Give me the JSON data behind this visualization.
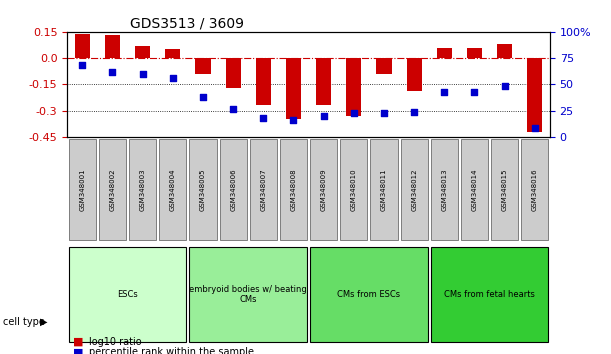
{
  "title": "GDS3513 / 3609",
  "samples": [
    "GSM348001",
    "GSM348002",
    "GSM348003",
    "GSM348004",
    "GSM348005",
    "GSM348006",
    "GSM348007",
    "GSM348008",
    "GSM348009",
    "GSM348010",
    "GSM348011",
    "GSM348012",
    "GSM348013",
    "GSM348014",
    "GSM348015",
    "GSM348016"
  ],
  "log10_ratio": [
    0.135,
    0.13,
    0.07,
    0.05,
    -0.09,
    -0.17,
    -0.27,
    -0.35,
    -0.27,
    -0.33,
    -0.09,
    -0.19,
    0.06,
    0.06,
    0.08,
    -0.42
  ],
  "percentile_rank": [
    68,
    62,
    60,
    56,
    38,
    27,
    18,
    16,
    20,
    23,
    23,
    24,
    43,
    43,
    48,
    8
  ],
  "ylim_left": [
    -0.45,
    0.15
  ],
  "ylim_right": [
    0,
    100
  ],
  "yticks_left": [
    -0.45,
    -0.3,
    -0.15,
    0.0,
    0.15
  ],
  "yticks_right": [
    0,
    25,
    50,
    75,
    100
  ],
  "bar_color": "#cc0000",
  "dot_color": "#0000cc",
  "zero_line_color": "#cc0000",
  "grid_line_color": "#000000",
  "cell_type_groups": [
    {
      "label": "ESCs",
      "start": 0,
      "end": 3,
      "color": "#ccffcc"
    },
    {
      "label": "embryoid bodies w/ beating\nCMs",
      "start": 4,
      "end": 7,
      "color": "#99ee99"
    },
    {
      "label": "CMs from ESCs",
      "start": 8,
      "end": 11,
      "color": "#66dd66"
    },
    {
      "label": "CMs from fetal hearts",
      "start": 12,
      "end": 15,
      "color": "#33cc33"
    }
  ],
  "legend_items": [
    {
      "label": "log10 ratio",
      "color": "#cc0000",
      "marker": "s"
    },
    {
      "label": "percentile rank within the sample",
      "color": "#0000cc",
      "marker": "s"
    }
  ]
}
